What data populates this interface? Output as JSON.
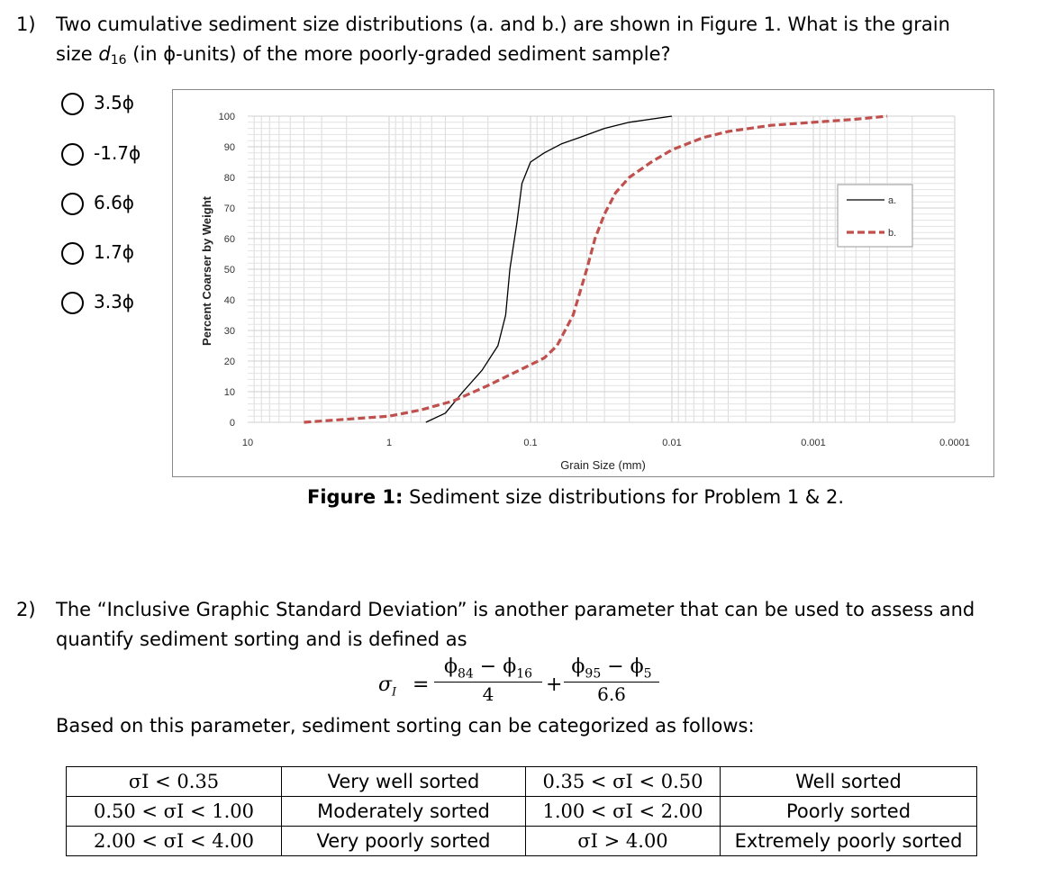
{
  "q1": {
    "number": "1)",
    "line1": "Two cumulative sediment size distributions (a. and b.) are shown in Figure 1. What is the grain",
    "line2_pre": "size ",
    "line2_var": "d",
    "line2_sub": "16",
    "line2_post": " (in ϕ-units) of the more poorly-graded sediment sample?",
    "options": [
      "3.5ϕ",
      "-1.7ϕ",
      "6.6ϕ",
      "1.7ϕ",
      "3.3ϕ"
    ]
  },
  "caption": {
    "bold": "Figure 1:",
    "rest": " Sediment size distributions for Problem 1 & 2."
  },
  "chart_data": {
    "type": "line",
    "xlabel": "Grain Size (mm)",
    "ylabel": "Percent Coarser by Weight",
    "x_scale": "log",
    "x_reversed": true,
    "xlim": [
      10,
      0.0001
    ],
    "ylim": [
      0,
      100
    ],
    "x_ticks": [
      "10",
      "1",
      "0.1",
      "0.01",
      "0.001",
      "0.0001"
    ],
    "y_ticks": [
      "0",
      "10",
      "20",
      "30",
      "40",
      "50",
      "60",
      "70",
      "80",
      "90",
      "100"
    ],
    "legend_position": "right",
    "grid": true,
    "series": [
      {
        "name": "a.",
        "style": "solid",
        "color": "#000000",
        "x": [
          0.55,
          0.4,
          0.3,
          0.22,
          0.17,
          0.15,
          0.14,
          0.125,
          0.115,
          0.1,
          0.08,
          0.06,
          0.045,
          0.03,
          0.02,
          0.01
        ],
        "y": [
          0,
          3,
          10,
          17,
          25,
          35,
          50,
          65,
          78,
          85,
          88,
          91,
          93,
          96,
          98,
          100
        ]
      },
      {
        "name": "b.",
        "style": "dashed",
        "color": "#c0504d",
        "x": [
          4,
          2,
          1,
          0.6,
          0.35,
          0.2,
          0.12,
          0.08,
          0.065,
          0.05,
          0.04,
          0.035,
          0.03,
          0.025,
          0.02,
          0.014,
          0.01,
          0.006,
          0.004,
          0.002,
          0.001,
          0.0005,
          0.0003
        ],
        "y": [
          0,
          1,
          2,
          4,
          7,
          12,
          17,
          21,
          25,
          35,
          50,
          60,
          68,
          75,
          80,
          85,
          89,
          93,
          95,
          97,
          98,
          99,
          100
        ]
      }
    ]
  },
  "q2": {
    "number": "2)",
    "line1": "The “Inclusive Graphic Standard Deviation” is another parameter that can be used to assess and",
    "line2": "quantify sediment sorting and is defined as",
    "line3": "Based on this parameter, sediment sorting can be categorized as follows:"
  },
  "formula": {
    "lhs": "σ",
    "lhs_sub": "I",
    "eq": "=",
    "frac1_num_a": "ϕ",
    "frac1_num_a_sub": "84",
    "frac1_minus": "−",
    "frac1_num_b": "ϕ",
    "frac1_num_b_sub": "16",
    "frac1_den": "4",
    "plus": "+",
    "frac2_num_a": "ϕ",
    "frac2_num_a_sub": "95",
    "frac2_minus": "−",
    "frac2_num_b": "ϕ",
    "frac2_num_b_sub": "5",
    "frac2_den": "6.6"
  },
  "sorting_table": {
    "rows": [
      [
        "σI < 0.35",
        "Very well sorted",
        "0.35 < σI < 0.50",
        "Well sorted"
      ],
      [
        "0.50 < σI < 1.00",
        "Moderately sorted",
        "1.00 < σI < 2.00",
        "Poorly sorted"
      ],
      [
        "2.00 < σI < 4.00",
        "Very poorly sorted",
        "σI > 4.00",
        "Extremely poorly sorted"
      ]
    ]
  }
}
